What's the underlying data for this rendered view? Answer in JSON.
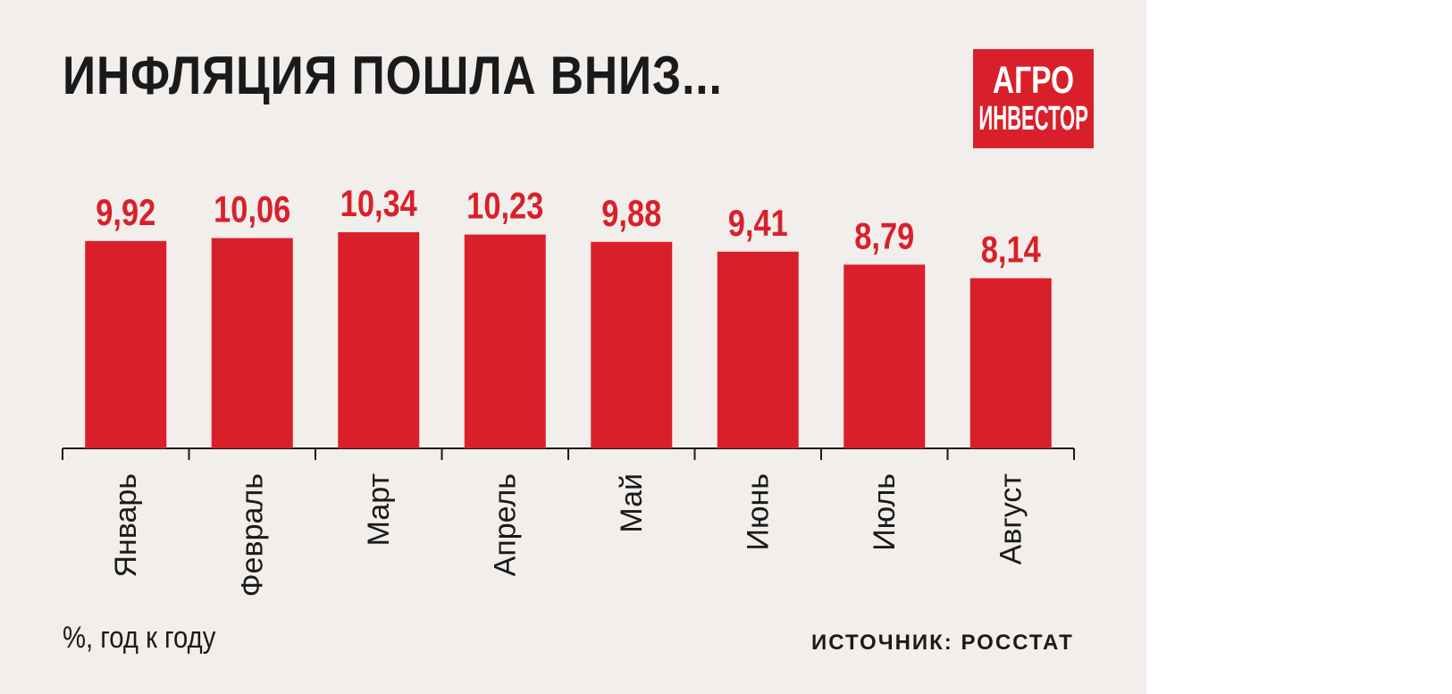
{
  "title": "ИНФЛЯЦИЯ ПОШЛА ВНИЗ...",
  "logo": {
    "line1": "АГРО",
    "line2": "ИНВЕСТОР"
  },
  "unit_note": "%, год к году",
  "source": "ИСТОЧНИК: РОССТАТ",
  "colors": {
    "bar": "#d9202a",
    "label": "#d9202a",
    "text": "#1a1a1a",
    "background": "#f2eeeb"
  },
  "chart_data": {
    "type": "bar",
    "categories": [
      "Январь",
      "Февраль",
      "Март",
      "Апрель",
      "Май",
      "Июнь",
      "Июль",
      "Август"
    ],
    "values": [
      9.92,
      10.06,
      10.34,
      10.23,
      9.88,
      9.41,
      8.79,
      8.14
    ],
    "value_labels": [
      "9,92",
      "10,06",
      "10,34",
      "10,23",
      "9,88",
      "9,41",
      "8,79",
      "8,14"
    ],
    "ylim": [
      0,
      10.34
    ],
    "grid": false,
    "legend": "none"
  }
}
